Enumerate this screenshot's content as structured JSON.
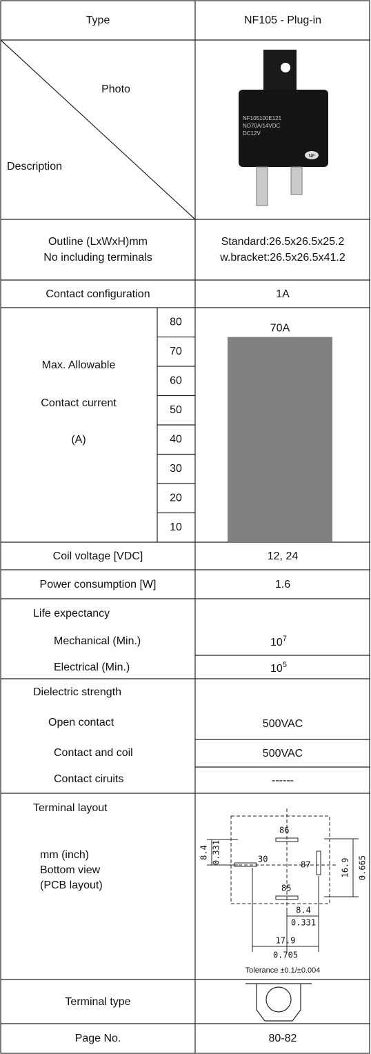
{
  "type": {
    "label": "Type",
    "value": "NF105 - Plug-in"
  },
  "photo": {
    "label": "Photo",
    "description": "Description",
    "product_marking": [
      "NF105100E121",
      "NO70A/14VDC",
      "DC12V"
    ],
    "logo": "NF"
  },
  "outline": {
    "label": [
      "Outline (LxWxH)mm",
      "No including terminals"
    ],
    "value": [
      "Standard:26.5x26.5x25.2",
      "w.bracket:26.5x26.5x41.2"
    ]
  },
  "contact_configuration": {
    "label": "Contact configuration",
    "value": "1A"
  },
  "max_current": {
    "label": [
      "Max. Allowable",
      "Contact current",
      "(A)"
    ],
    "scale": [
      80,
      70,
      60,
      50,
      40,
      30,
      20,
      10
    ],
    "value": 70,
    "value_label": "70A",
    "color": "#808080"
  },
  "coil_voltage": {
    "label": "Coil voltage [VDC]",
    "value": "12, 24"
  },
  "power_consumption": {
    "label": "Power consumption [W]",
    "value": "1.6"
  },
  "life_expectancy": {
    "label": "Life expectancy",
    "rows": [
      {
        "label": "Mechanical (Min.)",
        "base": "10",
        "exponent": "7"
      },
      {
        "label": "Electrical (Min.)",
        "base": "10",
        "exponent": "5"
      }
    ]
  },
  "dielectric_strength": {
    "label": "Dielectric strength",
    "rows": [
      {
        "label": "Open contact",
        "value": "500VAC"
      },
      {
        "label": "Contact and coil",
        "value": "500VAC"
      },
      {
        "label": "Contact ciruits",
        "value": "------"
      }
    ]
  },
  "terminal_layout": {
    "label": "Terminal layout",
    "notes": [
      "mm (inch)",
      "Bottom view",
      "(PCB layout)"
    ],
    "diagram": {
      "pins": [
        "30",
        "86",
        "87",
        "85"
      ],
      "dimensions": [
        "8.4",
        "0.331",
        "16.9",
        "0.665",
        "8.4",
        "0.331",
        "17.9",
        "0.705"
      ]
    },
    "tolerance": "Tolerance ±0.1/±0.004"
  },
  "terminal_type": {
    "label": "Terminal type"
  },
  "page_no": {
    "label": "Page No.",
    "value": "80-82"
  }
}
